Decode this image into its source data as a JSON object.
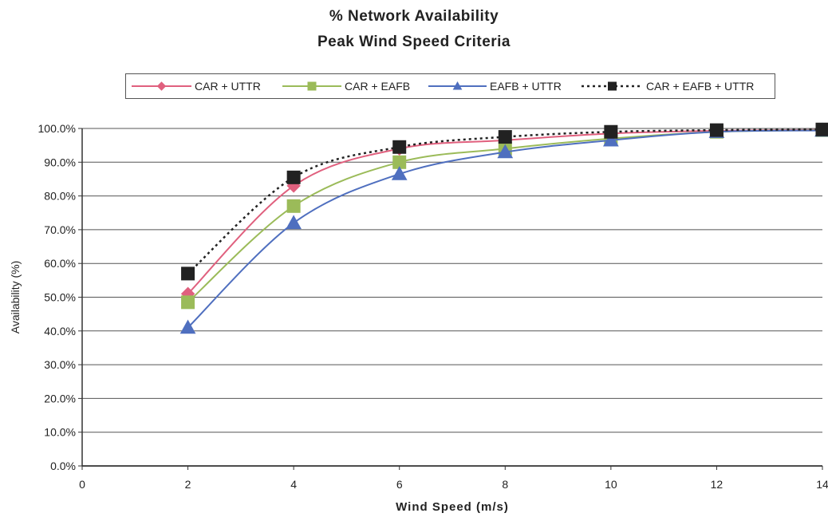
{
  "chart_data": {
    "type": "line",
    "title": "% Network Availability",
    "subtitle": "Peak Wind Speed Criteria",
    "xlabel": "Wind Speed (m/s)",
    "ylabel": "Availability (%)",
    "xlim": [
      0,
      14
    ],
    "ylim": [
      0,
      100
    ],
    "x_ticks": [
      "0",
      "2",
      "4",
      "6",
      "8",
      "10",
      "12",
      "14"
    ],
    "y_ticks": [
      "0.0%",
      "10.0%",
      "20.0%",
      "30.0%",
      "40.0%",
      "50.0%",
      "60.0%",
      "70.0%",
      "80.0%",
      "90.0%",
      "100.0%"
    ],
    "grid": "horizontal",
    "legend_position": "top",
    "x": [
      2,
      4,
      6,
      8,
      10,
      12,
      14
    ],
    "series": [
      {
        "name": "CAR + UTTR",
        "color": "#e0607e",
        "marker": "diamond",
        "dash": "solid",
        "values": [
          51,
          83,
          94,
          96.5,
          98.5,
          99.3,
          99.6
        ]
      },
      {
        "name": "CAR + EAFB",
        "color": "#9bbb59",
        "marker": "square",
        "dash": "solid",
        "values": [
          48.5,
          77,
          90,
          94,
          97,
          99,
          99.5
        ]
      },
      {
        "name": "EAFB + UTTR",
        "color": "#4f6fbf",
        "marker": "triangle",
        "dash": "solid",
        "values": [
          41,
          72,
          86.5,
          93,
          96.5,
          99,
          99.4
        ]
      },
      {
        "name": "CAR + EAFB + UTTR",
        "color": "#222222",
        "marker": "square",
        "dash": "dotted",
        "values": [
          57,
          85.5,
          94.5,
          97.5,
          99,
          99.5,
          99.7
        ]
      }
    ]
  }
}
